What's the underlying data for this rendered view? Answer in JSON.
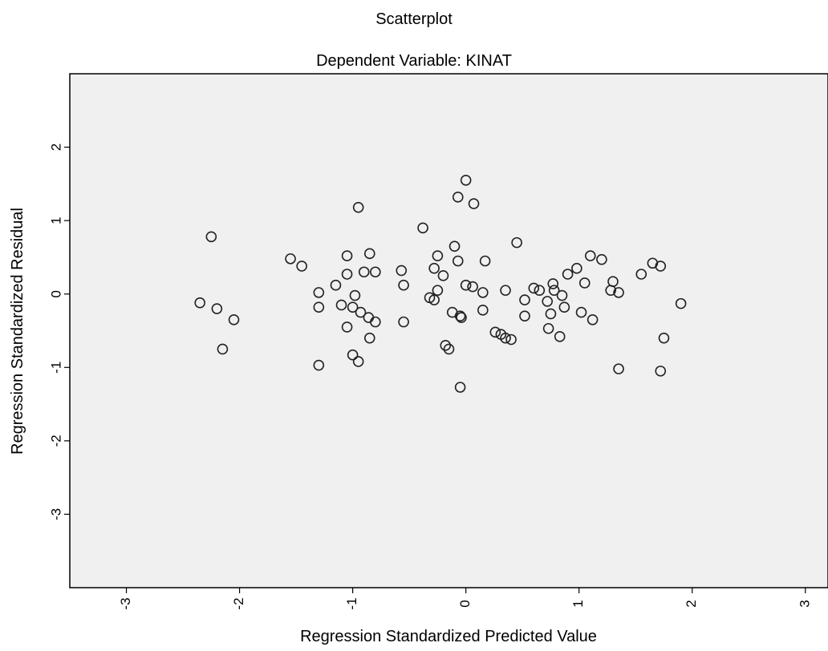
{
  "chart_data": {
    "type": "scatter",
    "title": "Scatterplot",
    "subtitle": "Dependent Variable: KINAT",
    "xlabel": "Regression Standardized Predicted Value",
    "ylabel": "Regression Standardized Residual",
    "xlim": [
      -3.5,
      3.2
    ],
    "ylim": [
      -4.0,
      3.0
    ],
    "xticks": [
      -3,
      -2,
      -1,
      0,
      1,
      2,
      3
    ],
    "yticks": [
      -3,
      -2,
      -1,
      0,
      1,
      2
    ],
    "xtick_labels": [
      "-3",
      "-2",
      "-1",
      "0",
      "1",
      "2",
      "3"
    ],
    "ytick_labels": [
      "-3",
      "-2",
      "-1",
      "0",
      "1",
      "2"
    ],
    "grid": false,
    "background_color": "#f0f0f0",
    "marker_color": "#222222",
    "points": [
      [
        0.0,
        1.55
      ],
      [
        -0.07,
        1.32
      ],
      [
        0.07,
        1.23
      ],
      [
        -0.95,
        1.18
      ],
      [
        -0.38,
        0.9
      ],
      [
        -2.25,
        0.78
      ],
      [
        0.45,
        0.7
      ],
      [
        -0.1,
        0.65
      ],
      [
        -1.55,
        0.48
      ],
      [
        -1.45,
        0.38
      ],
      [
        -1.05,
        0.52
      ],
      [
        -0.85,
        0.55
      ],
      [
        -0.25,
        0.52
      ],
      [
        -0.07,
        0.45
      ],
      [
        0.17,
        0.45
      ],
      [
        1.1,
        0.52
      ],
      [
        1.2,
        0.47
      ],
      [
        0.98,
        0.35
      ],
      [
        1.65,
        0.42
      ],
      [
        1.72,
        0.38
      ],
      [
        -1.05,
        0.27
      ],
      [
        -0.8,
        0.3
      ],
      [
        -0.57,
        0.32
      ],
      [
        -0.28,
        0.35
      ],
      [
        -0.2,
        0.25
      ],
      [
        1.55,
        0.27
      ],
      [
        0.9,
        0.27
      ],
      [
        -1.15,
        0.12
      ],
      [
        -0.9,
        0.3
      ],
      [
        -0.55,
        0.12
      ],
      [
        -0.25,
        0.05
      ],
      [
        0.0,
        0.12
      ],
      [
        0.06,
        0.1
      ],
      [
        0.15,
        0.02
      ],
      [
        0.35,
        0.05
      ],
      [
        0.6,
        0.08
      ],
      [
        0.65,
        0.05
      ],
      [
        0.77,
        0.14
      ],
      [
        0.78,
        0.05
      ],
      [
        1.05,
        0.15
      ],
      [
        1.3,
        0.17
      ],
      [
        1.28,
        0.05
      ],
      [
        1.35,
        0.02
      ],
      [
        -1.3,
        0.02
      ],
      [
        -0.98,
        -0.02
      ],
      [
        -0.32,
        -0.05
      ],
      [
        -0.28,
        -0.08
      ],
      [
        0.52,
        -0.08
      ],
      [
        0.72,
        -0.1
      ],
      [
        0.85,
        -0.02
      ],
      [
        1.9,
        -0.13
      ],
      [
        -2.35,
        -0.12
      ],
      [
        -2.2,
        -0.2
      ],
      [
        -2.05,
        -0.35
      ],
      [
        -1.3,
        -0.18
      ],
      [
        -1.1,
        -0.15
      ],
      [
        -1.0,
        -0.18
      ],
      [
        -0.93,
        -0.25
      ],
      [
        -0.86,
        -0.32
      ],
      [
        -0.8,
        -0.38
      ],
      [
        -0.55,
        -0.38
      ],
      [
        -0.12,
        -0.25
      ],
      [
        0.15,
        -0.22
      ],
      [
        0.52,
        -0.3
      ],
      [
        0.75,
        -0.27
      ],
      [
        0.87,
        -0.18
      ],
      [
        1.02,
        -0.25
      ],
      [
        1.12,
        -0.35
      ],
      [
        -1.05,
        -0.45
      ],
      [
        -0.85,
        -0.6
      ],
      [
        -0.05,
        -0.3
      ],
      [
        -0.04,
        -0.32
      ],
      [
        0.26,
        -0.52
      ],
      [
        0.31,
        -0.55
      ],
      [
        0.35,
        -0.6
      ],
      [
        0.4,
        -0.62
      ],
      [
        0.73,
        -0.47
      ],
      [
        0.83,
        -0.58
      ],
      [
        1.75,
        -0.6
      ],
      [
        -0.18,
        -0.7
      ],
      [
        -0.15,
        -0.75
      ],
      [
        -2.15,
        -0.75
      ],
      [
        -1.0,
        -0.83
      ],
      [
        -0.95,
        -0.92
      ],
      [
        -1.3,
        -0.97
      ],
      [
        1.35,
        -1.02
      ],
      [
        1.72,
        -1.05
      ],
      [
        -0.05,
        -1.27
      ]
    ]
  }
}
